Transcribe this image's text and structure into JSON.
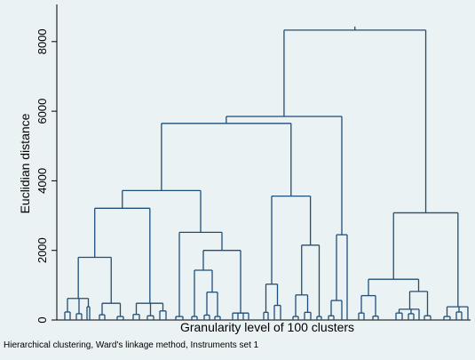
{
  "chart_data": {
    "type": "dendrogram",
    "ylabel": "Euclidian distance",
    "xlabel": "Granularity level of 100 clusters",
    "note": "Hierarchical clustering, Ward's linkage method, Instruments set 1",
    "ylim": [
      0,
      8500
    ],
    "yticks": [
      0,
      2000,
      4000,
      6000,
      8000
    ],
    "grid": false,
    "leaves": 100,
    "merges": [
      {
        "id": "root",
        "height": 8330
      },
      {
        "id": "left-main",
        "height": 5850
      },
      {
        "id": "left-a",
        "height": 5650
      },
      {
        "id": "left-a1",
        "height": 3720
      },
      {
        "id": "left-a1a",
        "height": 3210
      },
      {
        "id": "left-a1a-1",
        "height": 1800
      },
      {
        "id": "left-a1b",
        "height": 2520
      },
      {
        "id": "left-a1b-2",
        "height": 2000
      },
      {
        "id": "left-a1b-2a",
        "height": 1430
      },
      {
        "id": "left-a2",
        "height": 3560
      },
      {
        "id": "left-a2-2",
        "height": 2150
      },
      {
        "id": "left-b",
        "height": 2450
      },
      {
        "id": "right-main",
        "height": 3080
      },
      {
        "id": "right-a",
        "height": 1170
      },
      {
        "id": "right-b",
        "height": 380
      }
    ]
  }
}
